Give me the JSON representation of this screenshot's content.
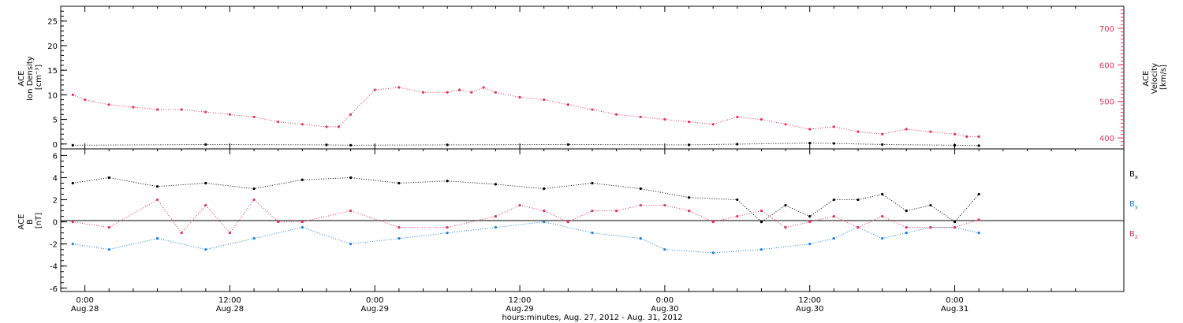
{
  "colors": {
    "density": "#e8305a",
    "velocity": "#000000",
    "bx": "#000000",
    "by": "#1a7fe0",
    "bz": "#e8305a"
  },
  "chart_data": [
    {
      "type": "scatter",
      "panel": "top",
      "ylabel_left": [
        "ACE",
        "Ion Density",
        "[cm⁻³]"
      ],
      "ylabel_right": [
        "ACE",
        "Velocity",
        "[km/s]"
      ],
      "y_left_ticks": [
        "0",
        "5",
        "10",
        "15",
        "20",
        "25"
      ],
      "y_left_lim": [
        -1,
        28
      ],
      "y_right_ticks": [
        "400",
        "500",
        "600",
        "700"
      ],
      "y_right_lim": [
        370,
        760
      ],
      "x_hours_range": [
        -2,
        86
      ],
      "series": [
        {
          "label": "density",
          "color": "#e8305a",
          "points": [
            [
              -1,
              10
            ],
            [
              0,
              9
            ],
            [
              2,
              8
            ],
            [
              4,
              7.5
            ],
            [
              6,
              7
            ],
            [
              8,
              7
            ],
            [
              10,
              6.5
            ],
            [
              12,
              6
            ],
            [
              14,
              5.5
            ],
            [
              16,
              4.5
            ],
            [
              18,
              4
            ],
            [
              20,
              3.5
            ],
            [
              21,
              3.5
            ],
            [
              22,
              6
            ],
            [
              24,
              11
            ],
            [
              26,
              11.5
            ],
            [
              28,
              10.5
            ],
            [
              30,
              10.5
            ],
            [
              31,
              11
            ],
            [
              32,
              10.5
            ],
            [
              33,
              11.5
            ],
            [
              34,
              10.5
            ],
            [
              36,
              9.5
            ],
            [
              38,
              9
            ],
            [
              40,
              8
            ],
            [
              42,
              7
            ],
            [
              44,
              6
            ],
            [
              46,
              5.5
            ],
            [
              48,
              5
            ],
            [
              50,
              4.5
            ],
            [
              52,
              4
            ],
            [
              54,
              5.5
            ],
            [
              56,
              5
            ],
            [
              58,
              4
            ],
            [
              60,
              3
            ],
            [
              62,
              3.5
            ],
            [
              64,
              2.5
            ],
            [
              66,
              2
            ],
            [
              68,
              3
            ],
            [
              70,
              2.5
            ],
            [
              72,
              2
            ],
            [
              73,
              1.5
            ],
            [
              74,
              1.5
            ]
          ]
        },
        {
          "label": "velocity",
          "color": "#000000",
          "points": [
            [
              -1,
              380
            ],
            [
              10,
              382
            ],
            [
              20,
              381
            ],
            [
              22,
              380
            ],
            [
              30,
              381
            ],
            [
              40,
              382
            ],
            [
              50,
              381
            ],
            [
              54,
              383
            ],
            [
              60,
              386
            ],
            [
              62,
              385
            ],
            [
              66,
              382
            ],
            [
              72,
              380
            ],
            [
              74,
              379
            ]
          ]
        }
      ]
    },
    {
      "type": "scatter",
      "panel": "bottom",
      "ylabel": [
        "ACE",
        "B",
        "[nT]"
      ],
      "y_ticks": [
        "-6",
        "-4",
        "-2",
        "0",
        "2",
        "4",
        "6"
      ],
      "ylim": [
        -6.3,
        6.6
      ],
      "x_hours_range": [
        -2,
        86
      ],
      "series": [
        {
          "name": "Bx",
          "label": "Bx",
          "color": "#000000",
          "points": [
            [
              -1,
              3.5
            ],
            [
              2,
              4
            ],
            [
              6,
              3.2
            ],
            [
              10,
              3.5
            ],
            [
              14,
              3
            ],
            [
              18,
              3.8
            ],
            [
              22,
              4
            ],
            [
              26,
              3.5
            ],
            [
              30,
              3.7
            ],
            [
              34,
              3.4
            ],
            [
              38,
              3
            ],
            [
              42,
              3.5
            ],
            [
              46,
              3
            ],
            [
              50,
              2.2
            ],
            [
              54,
              2
            ],
            [
              56,
              0
            ],
            [
              58,
              1.5
            ],
            [
              60,
              0.5
            ],
            [
              62,
              2
            ],
            [
              64,
              2
            ],
            [
              66,
              2.5
            ],
            [
              68,
              1
            ],
            [
              70,
              1.5
            ],
            [
              72,
              0
            ],
            [
              74,
              2.5
            ]
          ]
        },
        {
          "name": "By",
          "label": "By",
          "color": "#1a7fe0",
          "points": [
            [
              -1,
              -2
            ],
            [
              2,
              -2.5
            ],
            [
              6,
              -1.5
            ],
            [
              10,
              -2.5
            ],
            [
              14,
              -1.5
            ],
            [
              18,
              -0.5
            ],
            [
              22,
              -2
            ],
            [
              26,
              -1.5
            ],
            [
              30,
              -1
            ],
            [
              34,
              -0.5
            ],
            [
              38,
              0
            ],
            [
              42,
              -1
            ],
            [
              46,
              -1.5
            ],
            [
              48,
              -2.5
            ],
            [
              52,
              -2.8
            ],
            [
              56,
              -2.5
            ],
            [
              60,
              -2
            ],
            [
              62,
              -1.5
            ],
            [
              64,
              -0.5
            ],
            [
              66,
              -1.5
            ],
            [
              68,
              -1
            ],
            [
              70,
              -0.5
            ],
            [
              72,
              -0.5
            ],
            [
              74,
              -1
            ]
          ]
        },
        {
          "name": "Bz",
          "label": "Bz",
          "color": "#e8305a",
          "points": [
            [
              -1,
              0
            ],
            [
              2,
              -0.5
            ],
            [
              6,
              2
            ],
            [
              8,
              -1
            ],
            [
              10,
              1.5
            ],
            [
              12,
              -1
            ],
            [
              14,
              2
            ],
            [
              16,
              0
            ],
            [
              18,
              0
            ],
            [
              22,
              1
            ],
            [
              26,
              -0.5
            ],
            [
              30,
              -0.5
            ],
            [
              34,
              0.5
            ],
            [
              36,
              1.5
            ],
            [
              38,
              1
            ],
            [
              40,
              0
            ],
            [
              42,
              1
            ],
            [
              44,
              1
            ],
            [
              46,
              1.5
            ],
            [
              48,
              1.5
            ],
            [
              50,
              1
            ],
            [
              52,
              0
            ],
            [
              54,
              0.5
            ],
            [
              56,
              1
            ],
            [
              58,
              -0.5
            ],
            [
              60,
              0
            ],
            [
              62,
              0.5
            ],
            [
              64,
              -0.5
            ],
            [
              66,
              0.5
            ],
            [
              68,
              -0.5
            ],
            [
              70,
              -0.5
            ],
            [
              72,
              -0.5
            ],
            [
              74,
              0.2
            ]
          ]
        }
      ],
      "legend_labels": [
        "B",
        "B",
        "B"
      ],
      "legend_subs": [
        "x",
        "y",
        "z"
      ]
    }
  ],
  "x_axis": {
    "tick_hours": [
      0,
      12,
      24,
      36,
      48,
      60,
      72
    ],
    "tick_labels_time": [
      "0:00",
      "12:00",
      "0:00",
      "12:00",
      "0:00",
      "12:00",
      "0:00"
    ],
    "tick_labels_date": [
      "Aug.28",
      "Aug.28",
      "Aug.29",
      "Aug.29",
      "Aug.30",
      "Aug.30",
      "Aug.31"
    ],
    "title": "hours:minutes, Aug. 27, 2012 - Aug. 31, 2012"
  }
}
